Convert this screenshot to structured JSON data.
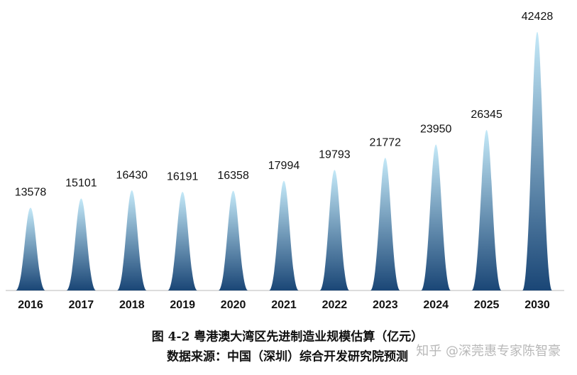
{
  "chart_data": {
    "type": "peak",
    "title": "图 4-2 粤港澳大湾区先进制造业规模估算（亿元）",
    "subtitle": "数据来源：中国（深圳）综合开发研究院预测",
    "annotation": "知乎 @深莞惠专家陈智豪",
    "categories": [
      "2016",
      "2017",
      "2018",
      "2019",
      "2020",
      "2021",
      "2022",
      "2023",
      "2024",
      "2025",
      "2030"
    ],
    "values": [
      13578,
      15101,
      16430,
      16191,
      16358,
      17994,
      19793,
      21772,
      23950,
      26345,
      42428
    ],
    "color": [
      "#c4e9f8",
      "#1a4676"
    ]
  }
}
